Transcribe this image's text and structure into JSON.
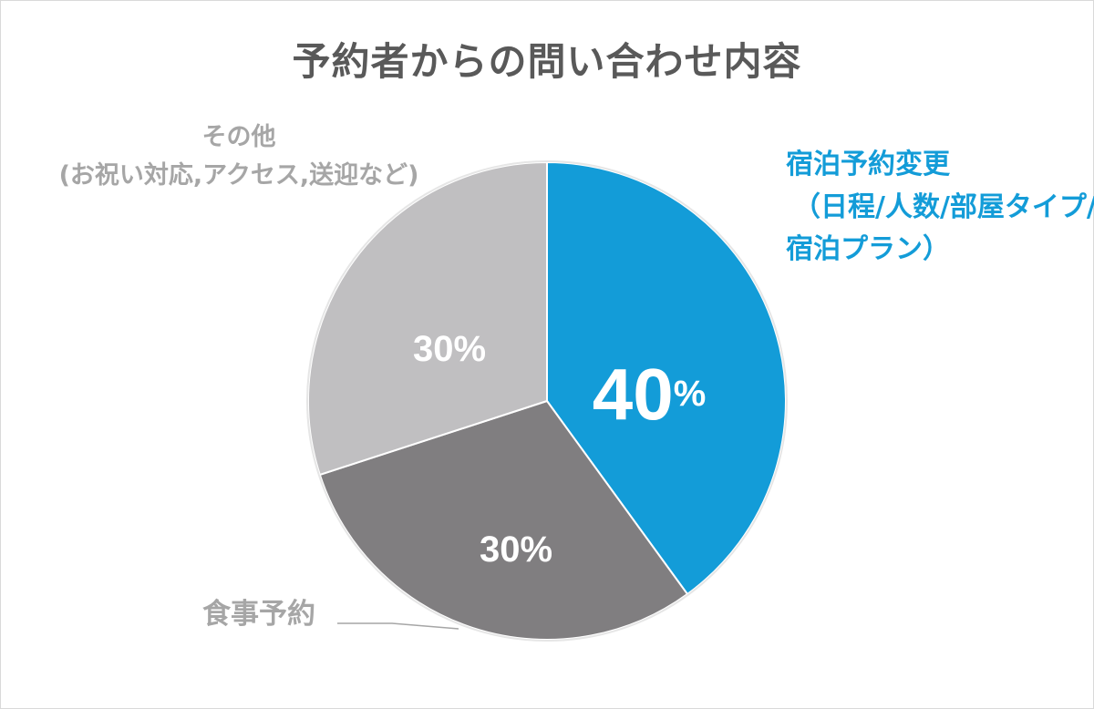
{
  "chart_data": {
    "type": "pie",
    "title": "予約者からの問い合わせ内容",
    "slices": [
      {
        "label_lines": [
          "宿泊予約変更",
          "（日程/人数/部屋タイプ/",
          "宿泊プラン）"
        ],
        "value": 40,
        "display": "40",
        "color": "#139cd8"
      },
      {
        "label_lines": [
          "食事予約"
        ],
        "value": 30,
        "display": "30%",
        "color": "#807e80"
      },
      {
        "label_lines": [
          "その他",
          "(お祝い対応,アクセス,送迎など)"
        ],
        "value": 30,
        "display": "30%",
        "color": "#c0bfc1"
      }
    ],
    "percent_suffix": "%",
    "legend": "none"
  }
}
